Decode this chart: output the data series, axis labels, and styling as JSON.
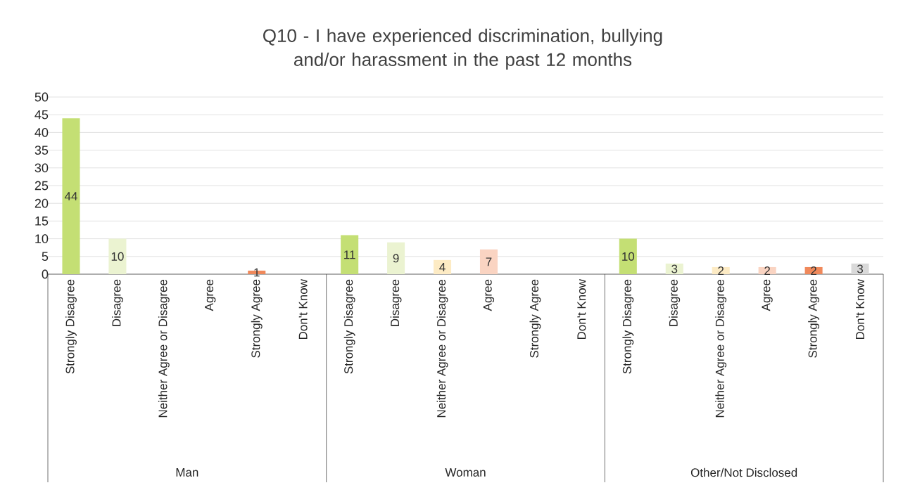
{
  "chart_data": {
    "type": "bar",
    "title": "Q10 - I have experienced discrimination, bullying and/or harassment in the past 12 months",
    "categories": [
      "Strongly Disagree",
      "Disagree",
      "Neither Agree or Disagree",
      "Agree",
      "Strongly Agree",
      "Don't Know",
      "Strongly Disagree",
      "Disagree",
      "Neither Agree or Disagree",
      "Agree",
      "Strongly Agree",
      "Don't Know",
      "Strongly Disagree",
      "Disagree",
      "Neither Agree or Disagree",
      "Agree",
      "Strongly Agree",
      "Don't Know"
    ],
    "values": [
      44,
      10,
      0,
      0,
      1,
      0,
      11,
      9,
      4,
      7,
      0,
      0,
      10,
      3,
      2,
      2,
      2,
      3
    ],
    "value_labels": [
      "44",
      "10",
      null,
      null,
      "1",
      null,
      "11",
      "9",
      "4",
      "7",
      null,
      null,
      "10",
      "3",
      "2",
      "2",
      "2",
      "3"
    ],
    "colors": [
      "#c4df74",
      "#ebf3d1",
      "#fdebc4",
      "#fad4c2",
      "#f0895b",
      "#d9d9d9",
      "#c4df74",
      "#ebf3d1",
      "#fdebc4",
      "#fad4c2",
      "#f0895b",
      "#d9d9d9",
      "#c4df74",
      "#ebf3d1",
      "#fdebc4",
      "#fad4c2",
      "#f0895b",
      "#d9d9d9"
    ],
    "ylim": [
      0,
      50
    ],
    "yticks": [
      0,
      5,
      10,
      15,
      20,
      25,
      30,
      35,
      40,
      45,
      50
    ],
    "grid": "y",
    "annotations": [
      "Man",
      "Woman",
      "Other/Not Disclosed"
    ]
  }
}
